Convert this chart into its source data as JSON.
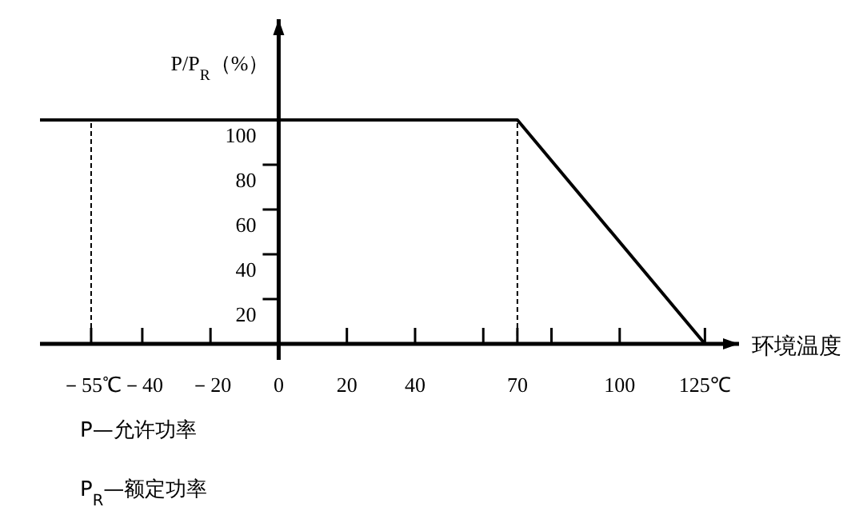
{
  "chart_data": {
    "type": "line",
    "ylabel": "P/P$_{R}$（%）",
    "xlabel": "环境温度",
    "x": [
      -70,
      70,
      125
    ],
    "series": [
      {
        "color": "#000000",
        "values": [
          100,
          100,
          0
        ],
        "line_style": "solid"
      }
    ],
    "ref_lines": [
      {
        "axis": "x",
        "value": -55,
        "color": "#000000",
        "line_style": "dashed"
      },
      {
        "axis": "x",
        "value": 70,
        "color": "#000000",
        "line_style": "dashed"
      }
    ],
    "xlim": [
      -70,
      135
    ],
    "ylim": [
      0,
      145
    ],
    "xticks": [
      {
        "value": -55,
        "label": "－55℃"
      },
      {
        "value": -40,
        "label": "－40"
      },
      {
        "value": -20,
        "label": "－20"
      },
      0,
      20,
      40,
      {
        "value": 60,
        "label": null
      },
      70,
      {
        "value": 80,
        "label": null
      },
      100,
      {
        "value": 125,
        "label": "125℃"
      }
    ],
    "yticks": [
      20,
      40,
      60,
      80,
      100
    ],
    "annotations": [
      "P—允许功率",
      "P$_{R}$—额定功率"
    ],
    "grid": false,
    "marker": "none"
  }
}
